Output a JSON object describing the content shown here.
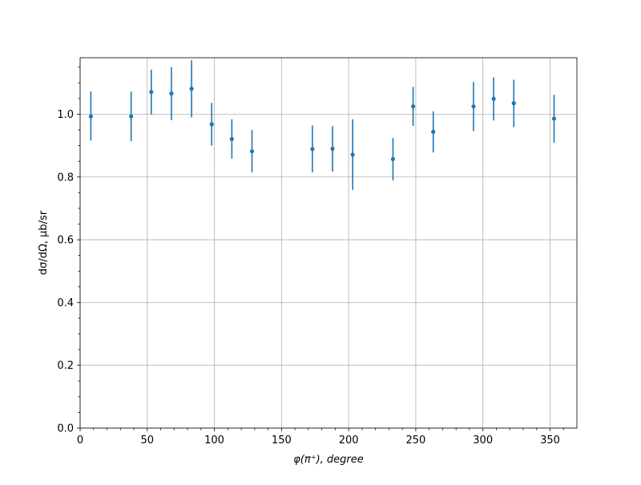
{
  "chart_data": {
    "type": "scatter",
    "title": "",
    "xlabel": "φ(π⁺), degree",
    "ylabel": "dσ/dΩ, μb/sr",
    "xlim": [
      0,
      370
    ],
    "ylim": [
      0,
      1.18
    ],
    "xticks": [
      0,
      50,
      100,
      150,
      200,
      250,
      300,
      350
    ],
    "xtick_labels": [
      "0",
      "50",
      "100",
      "150",
      "200",
      "250",
      "300",
      "350"
    ],
    "yticks": [
      0.0,
      0.2,
      0.4,
      0.6,
      0.8,
      1.0
    ],
    "ytick_labels": [
      "0.0",
      "0.2",
      "0.4",
      "0.6",
      "0.8",
      "1.0"
    ],
    "grid": true,
    "color": "#1f77b4",
    "points": [
      {
        "x": 8,
        "y": 0.993,
        "ylow": 0.916,
        "yhigh": 1.072
      },
      {
        "x": 38,
        "y": 0.993,
        "ylow": 0.914,
        "yhigh": 1.072
      },
      {
        "x": 53,
        "y": 1.071,
        "ylow": 0.999,
        "yhigh": 1.142
      },
      {
        "x": 68,
        "y": 1.066,
        "ylow": 0.981,
        "yhigh": 1.15
      },
      {
        "x": 83,
        "y": 1.081,
        "ylow": 0.99,
        "yhigh": 1.172
      },
      {
        "x": 98,
        "y": 0.968,
        "ylow": 0.9,
        "yhigh": 1.036
      },
      {
        "x": 113,
        "y": 0.921,
        "ylow": 0.858,
        "yhigh": 0.984
      },
      {
        "x": 128,
        "y": 0.882,
        "ylow": 0.815,
        "yhigh": 0.95
      },
      {
        "x": 173,
        "y": 0.889,
        "ylow": 0.815,
        "yhigh": 0.964
      },
      {
        "x": 188,
        "y": 0.89,
        "ylow": 0.817,
        "yhigh": 0.962
      },
      {
        "x": 203,
        "y": 0.871,
        "ylow": 0.759,
        "yhigh": 0.984
      },
      {
        "x": 233,
        "y": 0.857,
        "ylow": 0.789,
        "yhigh": 0.924
      },
      {
        "x": 248,
        "y": 1.025,
        "ylow": 0.963,
        "yhigh": 1.087
      },
      {
        "x": 263,
        "y": 0.944,
        "ylow": 0.878,
        "yhigh": 1.009
      },
      {
        "x": 293,
        "y": 1.025,
        "ylow": 0.946,
        "yhigh": 1.103
      },
      {
        "x": 308,
        "y": 1.049,
        "ylow": 0.98,
        "yhigh": 1.117
      },
      {
        "x": 323,
        "y": 1.035,
        "ylow": 0.959,
        "yhigh": 1.11
      },
      {
        "x": 353,
        "y": 0.986,
        "ylow": 0.909,
        "yhigh": 1.062
      }
    ]
  }
}
